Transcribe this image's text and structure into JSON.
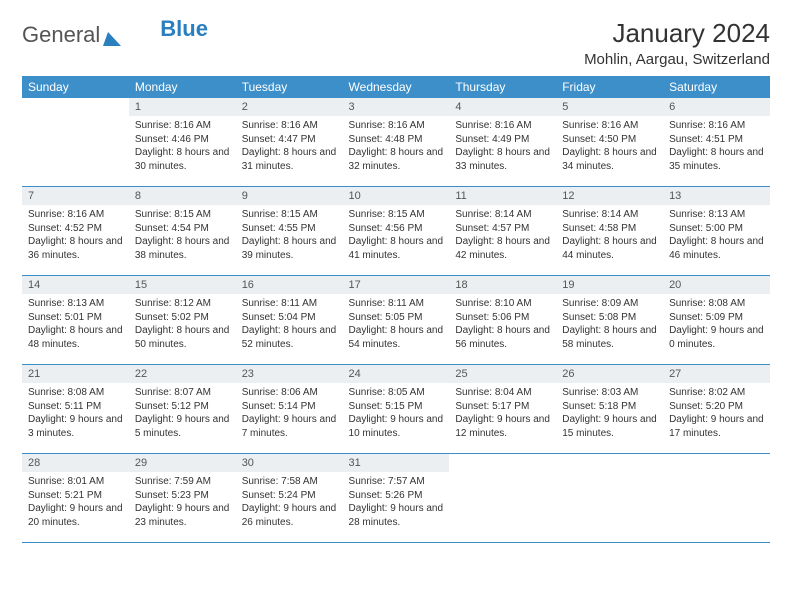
{
  "logo": {
    "part1": "General",
    "part2": "Blue"
  },
  "title": "January 2024",
  "location": "Mohlin, Aargau, Switzerland",
  "weekdays": [
    "Sunday",
    "Monday",
    "Tuesday",
    "Wednesday",
    "Thursday",
    "Friday",
    "Saturday"
  ],
  "header_bg": "#3d8fc9",
  "daynum_bg": "#eceff1",
  "weeks": [
    [
      null,
      {
        "n": "1",
        "sr": "8:16 AM",
        "ss": "4:46 PM",
        "dl": "8 hours and 30 minutes."
      },
      {
        "n": "2",
        "sr": "8:16 AM",
        "ss": "4:47 PM",
        "dl": "8 hours and 31 minutes."
      },
      {
        "n": "3",
        "sr": "8:16 AM",
        "ss": "4:48 PM",
        "dl": "8 hours and 32 minutes."
      },
      {
        "n": "4",
        "sr": "8:16 AM",
        "ss": "4:49 PM",
        "dl": "8 hours and 33 minutes."
      },
      {
        "n": "5",
        "sr": "8:16 AM",
        "ss": "4:50 PM",
        "dl": "8 hours and 34 minutes."
      },
      {
        "n": "6",
        "sr": "8:16 AM",
        "ss": "4:51 PM",
        "dl": "8 hours and 35 minutes."
      }
    ],
    [
      {
        "n": "7",
        "sr": "8:16 AM",
        "ss": "4:52 PM",
        "dl": "8 hours and 36 minutes."
      },
      {
        "n": "8",
        "sr": "8:15 AM",
        "ss": "4:54 PM",
        "dl": "8 hours and 38 minutes."
      },
      {
        "n": "9",
        "sr": "8:15 AM",
        "ss": "4:55 PM",
        "dl": "8 hours and 39 minutes."
      },
      {
        "n": "10",
        "sr": "8:15 AM",
        "ss": "4:56 PM",
        "dl": "8 hours and 41 minutes."
      },
      {
        "n": "11",
        "sr": "8:14 AM",
        "ss": "4:57 PM",
        "dl": "8 hours and 42 minutes."
      },
      {
        "n": "12",
        "sr": "8:14 AM",
        "ss": "4:58 PM",
        "dl": "8 hours and 44 minutes."
      },
      {
        "n": "13",
        "sr": "8:13 AM",
        "ss": "5:00 PM",
        "dl": "8 hours and 46 minutes."
      }
    ],
    [
      {
        "n": "14",
        "sr": "8:13 AM",
        "ss": "5:01 PM",
        "dl": "8 hours and 48 minutes."
      },
      {
        "n": "15",
        "sr": "8:12 AM",
        "ss": "5:02 PM",
        "dl": "8 hours and 50 minutes."
      },
      {
        "n": "16",
        "sr": "8:11 AM",
        "ss": "5:04 PM",
        "dl": "8 hours and 52 minutes."
      },
      {
        "n": "17",
        "sr": "8:11 AM",
        "ss": "5:05 PM",
        "dl": "8 hours and 54 minutes."
      },
      {
        "n": "18",
        "sr": "8:10 AM",
        "ss": "5:06 PM",
        "dl": "8 hours and 56 minutes."
      },
      {
        "n": "19",
        "sr": "8:09 AM",
        "ss": "5:08 PM",
        "dl": "8 hours and 58 minutes."
      },
      {
        "n": "20",
        "sr": "8:08 AM",
        "ss": "5:09 PM",
        "dl": "9 hours and 0 minutes."
      }
    ],
    [
      {
        "n": "21",
        "sr": "8:08 AM",
        "ss": "5:11 PM",
        "dl": "9 hours and 3 minutes."
      },
      {
        "n": "22",
        "sr": "8:07 AM",
        "ss": "5:12 PM",
        "dl": "9 hours and 5 minutes."
      },
      {
        "n": "23",
        "sr": "8:06 AM",
        "ss": "5:14 PM",
        "dl": "9 hours and 7 minutes."
      },
      {
        "n": "24",
        "sr": "8:05 AM",
        "ss": "5:15 PM",
        "dl": "9 hours and 10 minutes."
      },
      {
        "n": "25",
        "sr": "8:04 AM",
        "ss": "5:17 PM",
        "dl": "9 hours and 12 minutes."
      },
      {
        "n": "26",
        "sr": "8:03 AM",
        "ss": "5:18 PM",
        "dl": "9 hours and 15 minutes."
      },
      {
        "n": "27",
        "sr": "8:02 AM",
        "ss": "5:20 PM",
        "dl": "9 hours and 17 minutes."
      }
    ],
    [
      {
        "n": "28",
        "sr": "8:01 AM",
        "ss": "5:21 PM",
        "dl": "9 hours and 20 minutes."
      },
      {
        "n": "29",
        "sr": "7:59 AM",
        "ss": "5:23 PM",
        "dl": "9 hours and 23 minutes."
      },
      {
        "n": "30",
        "sr": "7:58 AM",
        "ss": "5:24 PM",
        "dl": "9 hours and 26 minutes."
      },
      {
        "n": "31",
        "sr": "7:57 AM",
        "ss": "5:26 PM",
        "dl": "9 hours and 28 minutes."
      },
      null,
      null,
      null
    ]
  ],
  "labels": {
    "sunrise": "Sunrise:",
    "sunset": "Sunset:",
    "daylight": "Daylight:"
  }
}
